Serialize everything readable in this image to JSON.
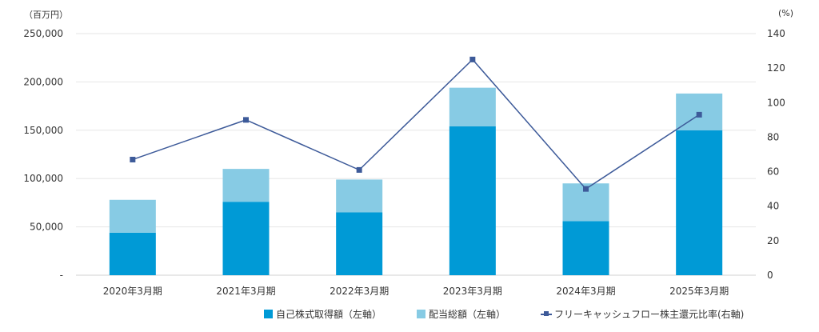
{
  "chart_data": {
    "type": "bar",
    "stacked": true,
    "categories": [
      "2020年3月期",
      "2021年3月期",
      "2022年3月期",
      "2023年3月期",
      "2024年3月期",
      "2025年3月期"
    ],
    "series": [
      {
        "name": "自己株式取得額（左軸）",
        "axis": "left",
        "color": "#009ad6",
        "values": [
          44000,
          76000,
          65000,
          154000,
          56000,
          150000
        ]
      },
      {
        "name": "配当総額（左軸）",
        "axis": "left",
        "color": "#87cbe4",
        "values": [
          34000,
          34000,
          34000,
          40000,
          39000,
          38000
        ]
      },
      {
        "name": "フリーキャッシュフロー株主還元比率(右軸)",
        "axis": "right",
        "type": "line",
        "color": "#3d5a99",
        "values": [
          67,
          90,
          61,
          125,
          50,
          93
        ]
      }
    ],
    "y_left": {
      "unit": "（百万円）",
      "min": 0,
      "max": 250000,
      "ticks": [
        0,
        50000,
        100000,
        150000,
        200000,
        250000
      ],
      "tick_labels": [
        "-",
        "50,000",
        "100,000",
        "150,000",
        "200,000",
        "250,000"
      ]
    },
    "y_right": {
      "unit": "(%)",
      "min": 0,
      "max": 140,
      "ticks": [
        0,
        20,
        40,
        60,
        80,
        100,
        120,
        140
      ],
      "tick_labels": [
        "0",
        "20",
        "40",
        "60",
        "80",
        "100",
        "120",
        "140"
      ]
    },
    "grid": true,
    "legend_position": "bottom"
  }
}
